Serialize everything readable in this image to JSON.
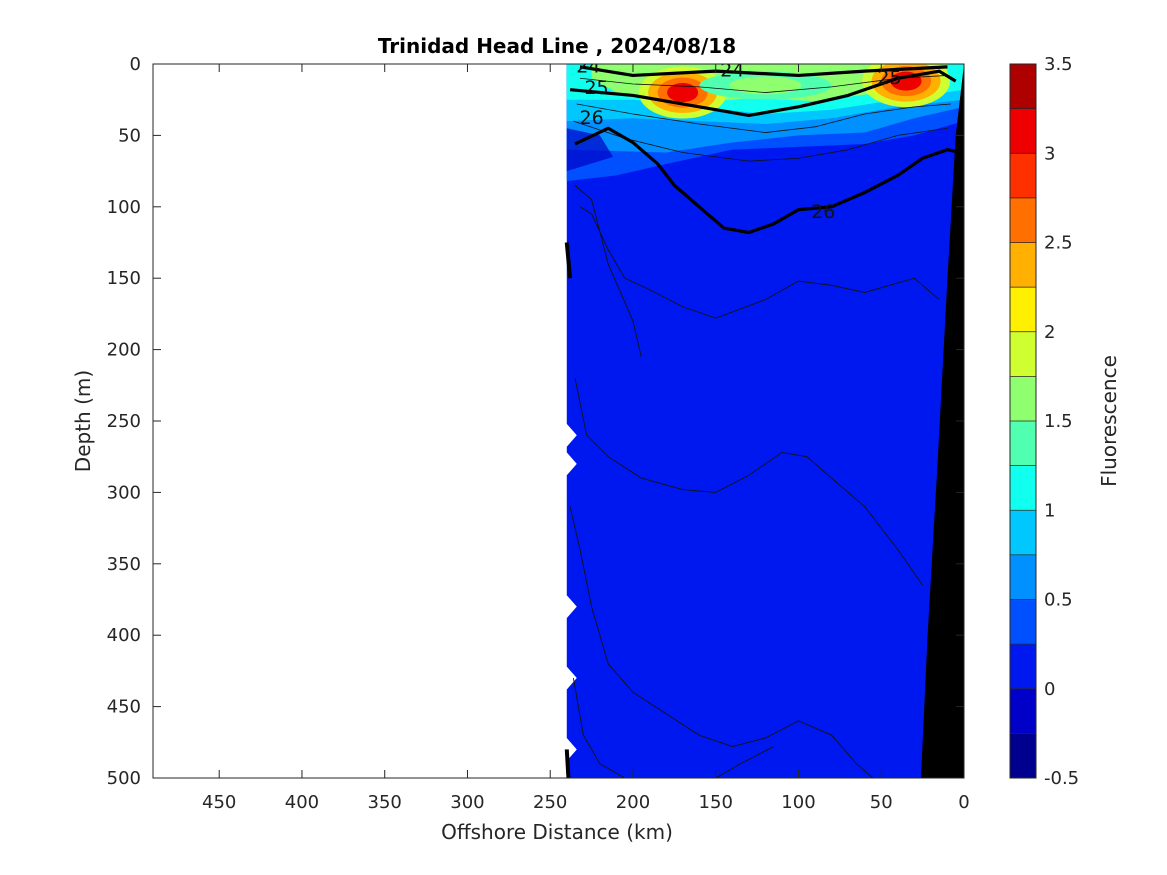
{
  "chart_data": {
    "type": "heatmap",
    "title": "Trinidad Head Line , 2024/08/18",
    "xlabel": "Offshore Distance (km)",
    "ylabel": "Depth (m)",
    "colorbar_label": "Fluorescence",
    "xlim": [
      490,
      0
    ],
    "ylim": [
      0,
      500
    ],
    "x_reversed": true,
    "y_reversed": true,
    "x_ticks": [
      "450",
      "400",
      "350",
      "300",
      "250",
      "200",
      "150",
      "100",
      "50",
      "0"
    ],
    "y_ticks": [
      "0",
      "50",
      "100",
      "150",
      "200",
      "250",
      "300",
      "350",
      "400",
      "450",
      "500"
    ],
    "colorbar": {
      "range": [
        -0.5,
        3.5
      ],
      "step": 0.25,
      "ticks": [
        "3.5",
        "3",
        "2.5",
        "2",
        "1.5",
        "1",
        "0.5",
        "0",
        "-0.5"
      ],
      "colors": [
        "#00008f",
        "#0000c8",
        "#0018f0",
        "#0050ff",
        "#0090ff",
        "#00c8ff",
        "#10ffef",
        "#50ffaf",
        "#8fff70",
        "#cfff30",
        "#ffef00",
        "#ffb000",
        "#ff7000",
        "#ff3000",
        "#ef0000",
        "#af0000"
      ]
    },
    "data_extent_km": 240,
    "bottom_profile": [
      [
        0,
        0
      ],
      [
        5,
        50
      ],
      [
        10,
        150
      ],
      [
        16,
        280
      ],
      [
        22,
        400
      ],
      [
        26,
        500
      ]
    ],
    "chl_max_layer": [
      {
        "x": 170,
        "depth": 20,
        "value": 3.0
      },
      {
        "x": 35,
        "depth": 12,
        "value": 3.0
      },
      {
        "x": 120,
        "depth": 15,
        "value": 1.5
      }
    ],
    "isopycnals": [
      {
        "level": "24",
        "points": [
          [
            232,
            2
          ],
          [
            200,
            8
          ],
          [
            150,
            5
          ],
          [
            100,
            8
          ],
          [
            60,
            5
          ],
          [
            10,
            2
          ]
        ]
      },
      {
        "level": "25",
        "points": [
          [
            238,
            18
          ],
          [
            200,
            22
          ],
          [
            160,
            30
          ],
          [
            130,
            36
          ],
          [
            100,
            30
          ],
          [
            70,
            22
          ],
          [
            40,
            10
          ],
          [
            15,
            5
          ],
          [
            5,
            12
          ]
        ]
      },
      {
        "level": "26",
        "points": [
          [
            235,
            56
          ],
          [
            215,
            45
          ],
          [
            200,
            55
          ],
          [
            185,
            70
          ],
          [
            175,
            85
          ],
          [
            160,
            100
          ],
          [
            145,
            115
          ],
          [
            130,
            118
          ],
          [
            115,
            112
          ],
          [
            100,
            102
          ],
          [
            80,
            100
          ],
          [
            60,
            90
          ],
          [
            40,
            78
          ],
          [
            25,
            66
          ],
          [
            10,
            60
          ],
          [
            2,
            62
          ]
        ]
      }
    ],
    "contour_labels": [
      {
        "text": "24",
        "x": 227,
        "depth": 1
      },
      {
        "text": "24",
        "x": 140,
        "depth": 4
      },
      {
        "text": "25",
        "x": 222,
        "depth": 16
      },
      {
        "text": "25",
        "x": 45,
        "depth": 9
      },
      {
        "text": "26",
        "x": 225,
        "depth": 37
      },
      {
        "text": "26",
        "x": 85,
        "depth": 103
      }
    ]
  }
}
